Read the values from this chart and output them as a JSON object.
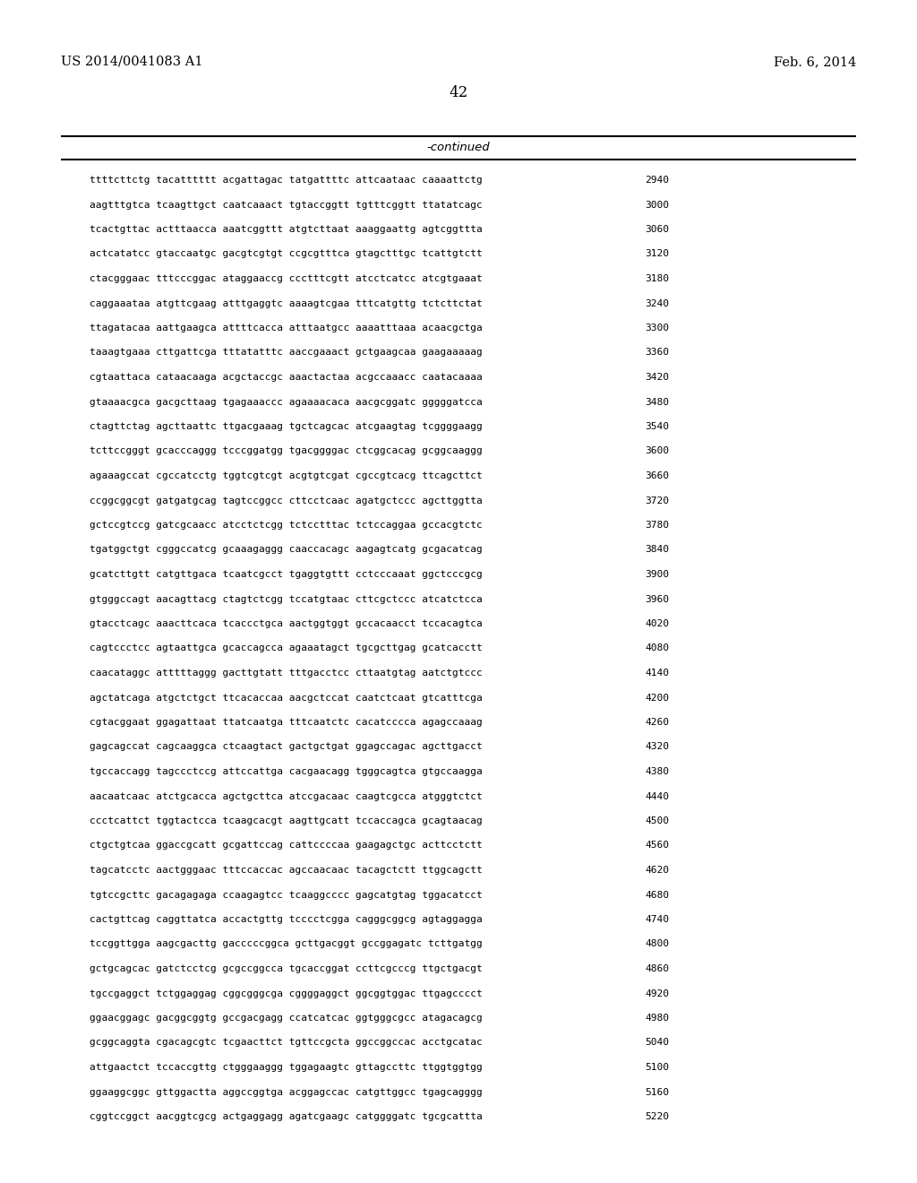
{
  "header_left": "US 2014/0041083 A1",
  "header_right": "Feb. 6, 2014",
  "page_number": "42",
  "continued_label": "-continued",
  "background_color": "#ffffff",
  "text_color": "#000000",
  "sequence_lines": [
    [
      "ttttcttctg tacatttttt acgattagac tatgattttc attcaataac caaaattctg",
      "2940"
    ],
    [
      "aagtttgtca tcaagttgct caatcaaact tgtaccggtt tgtttcggtt ttatatcagc",
      "3000"
    ],
    [
      "tcactgttac actttaacca aaatcggttt atgtcttaat aaaggaattg agtcggttta",
      "3060"
    ],
    [
      "actcatatcc gtaccaatgc gacgtcgtgt ccgcgtttca gtagctttgc tcattgtctt",
      "3120"
    ],
    [
      "ctacgggaac tttcccggac ataggaaccg ccctttcgtt atcctcatcc atcgtgaaat",
      "3180"
    ],
    [
      "caggaaataa atgttcgaag atttgaggtc aaaagtcgaa tttcatgttg tctcttctat",
      "3240"
    ],
    [
      "ttagatacaa aattgaagca attttcacca atttaatgcc aaaatttaaa acaacgctga",
      "3300"
    ],
    [
      "taaagtgaaa cttgattcga tttatatttc aaccgaaact gctgaagcaa gaagaaaaag",
      "3360"
    ],
    [
      "cgtaattaca cataacaaga acgctaccgc aaactactaa acgccaaacc caatacaaaa",
      "3420"
    ],
    [
      "gtaaaacgca gacgcttaag tgagaaaccc agaaaacaca aacgcggatc gggggatcca",
      "3480"
    ],
    [
      "ctagttctag agcttaattc ttgacgaaag tgctcagcac atcgaagtag tcggggaagg",
      "3540"
    ],
    [
      "tcttccgggt gcacccaggg tcccggatgg tgacggggac ctcggcacag gcggcaaggg",
      "3600"
    ],
    [
      "agaaagccat cgccatcctg tggtcgtcgt acgtgtcgat cgccgtcacg ttcagcttct",
      "3660"
    ],
    [
      "ccggcggcgt gatgatgcag tagtccggcc cttcctcaac agatgctccc agcttggtta",
      "3720"
    ],
    [
      "gctccgtccg gatcgcaacc atcctctcgg tctcctttac tctccaggaa gccacgtctc",
      "3780"
    ],
    [
      "tgatggctgt cgggccatcg gcaaagaggg caaccacagc aagagtcatg gcgacatcag",
      "3840"
    ],
    [
      "gcatcttgtt catgttgaca tcaatcgcct tgaggtgttt cctcccaaat ggctcccgcg",
      "3900"
    ],
    [
      "gtgggccagt aacagttacg ctagtctcgg tccatgtaac cttcgctccc atcatctcca",
      "3960"
    ],
    [
      "gtacctcagc aaacttcaca tcaccctgca aactggtggt gccacaacct tccacagtca",
      "4020"
    ],
    [
      "cagtccctcc agtaattgca gcaccagcca agaaatagct tgcgcttgag gcatcacctt",
      "4080"
    ],
    [
      "caacataggc atttttaggg gacttgtatt tttgacctcc cttaatgtag aatctgtccc",
      "4140"
    ],
    [
      "agctatcaga atgctctgct ttcacaccaa aacgctccat caatctcaat gtcatttcga",
      "4200"
    ],
    [
      "cgtacggaat ggagattaat ttatcaatga tttcaatctc cacatcccca agagccaaag",
      "4260"
    ],
    [
      "gagcagccat cagcaaggca ctcaagtact gactgctgat ggagccagac agcttgacct",
      "4320"
    ],
    [
      "tgccaccagg tagccctccg attccattga cacgaacagg tgggcagtca gtgccaagga",
      "4380"
    ],
    [
      "aacaatcaac atctgcacca agctgcttca atccgacaac caagtcgcca atgggtctct",
      "4440"
    ],
    [
      "ccctcattct tggtactcca tcaagcacgt aagttgcatt tccaccagca gcagtaacag",
      "4500"
    ],
    [
      "ctgctgtcaa ggaccgcatt gcgattccag cattccccaa gaagagctgc acttcctctt",
      "4560"
    ],
    [
      "tagcatcctc aactgggaac tttccaccac agccaacaac tacagctctt ttggcagctt",
      "4620"
    ],
    [
      "tgtccgcttc gacagagaga ccaagagtcc tcaaggcccc gagcatgtag tggacatcct",
      "4680"
    ],
    [
      "cactgttcag caggttatca accactgttg tcccctcgga cagggcggcg agtaggagga",
      "4740"
    ],
    [
      "tccggttgga aagcgacttg gacccccggca gcttgacggt gccggagatc tcttgatgg",
      "4800"
    ],
    [
      "gctgcagcac gatctcctcg gcgccggcca tgcaccggat ccttcgcccg ttgctgacgt",
      "4860"
    ],
    [
      "tgccgaggct tctggaggag cggcgggcga cggggaggct ggcggtggac ttgagcccct",
      "4920"
    ],
    [
      "ggaacggagc gacggcggtg gccgacgagg ccatcatcac ggtgggcgcc atagacagcg",
      "4980"
    ],
    [
      "gcggcaggta cgacagcgtc tcgaacttct tgttccgcta ggccggccac acctgcatac",
      "5040"
    ],
    [
      "attgaactct tccaccgttg ctgggaaggg tggagaagtc gttagccttc ttggtggtgg",
      "5100"
    ],
    [
      "ggaaggcggc gttggactta aggccggtga acggagccac catgttggcc tgagcagggg",
      "5160"
    ],
    [
      "cggtccggct aacggtcgcg actgaggagg agatcgaagc catggggatc tgcgcattta",
      "5220"
    ]
  ]
}
